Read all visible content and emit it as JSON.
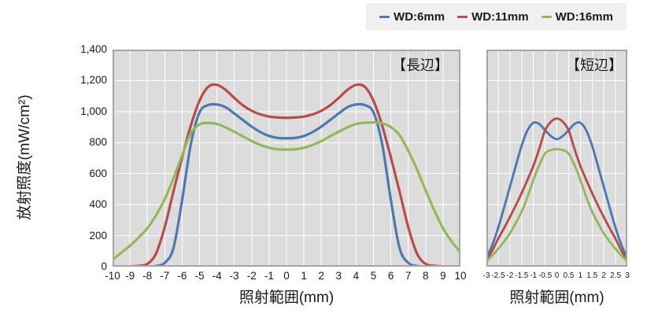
{
  "style": {
    "plot_bg": "#dcdcdc",
    "grid_color": "#ffffff",
    "plot_border": "#a6a6a6",
    "legend_bg": "#f0f0f0",
    "text_color": "#1a1a1a",
    "series_blue": "#4d79b3",
    "series_red": "#b94b4b",
    "series_green": "#93b857"
  },
  "chart_data": [
    {
      "type": "line",
      "title": "【長辺】",
      "xlabel": "照射範囲(mm)",
      "ylabel": "放射照度(mW/cm²)",
      "xlim": [
        -10,
        10
      ],
      "ylim": [
        0,
        1400
      ],
      "x_ticks": [
        -10,
        -9,
        -8,
        -7,
        -6,
        -5,
        -4,
        -3,
        -2,
        -1,
        0,
        1,
        2,
        3,
        4,
        5,
        6,
        7,
        8,
        9,
        10
      ],
      "y_ticks": [
        0,
        200,
        400,
        600,
        800,
        1000,
        1200,
        1400
      ],
      "grid": true,
      "legend_position": "top-right-outside",
      "series": [
        {
          "name": "WD:6mm",
          "color": "#4d79b3",
          "x": [
            -10,
            -9.5,
            -9,
            -8.5,
            -8,
            -7.5,
            -7,
            -6.5,
            -6,
            -5.5,
            -5,
            -4.5,
            -4,
            -3.5,
            -3,
            -2.5,
            -2,
            -1.5,
            -1,
            -0.5,
            0,
            0.5,
            1,
            1.5,
            2,
            2.5,
            3,
            3.5,
            4,
            4.5,
            5,
            5.5,
            6,
            6.5,
            7,
            7.5,
            8,
            8.5,
            9,
            9.5,
            10
          ],
          "y": [
            0,
            0,
            0,
            0,
            2,
            5,
            25,
            120,
            430,
            790,
            995,
            1042,
            1046,
            1028,
            988,
            945,
            903,
            868,
            843,
            830,
            828,
            830,
            843,
            868,
            903,
            945,
            988,
            1028,
            1046,
            1042,
            995,
            790,
            430,
            120,
            25,
            5,
            2,
            0,
            0,
            0,
            0
          ]
        },
        {
          "name": "WD:11mm",
          "color": "#b94b4b",
          "x": [
            -10,
            -9.5,
            -9,
            -8.5,
            -8,
            -7.5,
            -7,
            -6.5,
            -6,
            -5.5,
            -5,
            -4.5,
            -4,
            -3.5,
            -3,
            -2.5,
            -2,
            -1.5,
            -1,
            -0.5,
            0,
            0.5,
            1,
            1.5,
            2,
            2.5,
            3,
            3.5,
            4,
            4.5,
            5,
            5.5,
            6,
            6.5,
            7,
            7.5,
            8,
            8.5,
            9,
            9.5,
            10
          ],
          "y": [
            0,
            0,
            2,
            6,
            18,
            85,
            255,
            485,
            705,
            910,
            1070,
            1160,
            1172,
            1140,
            1088,
            1040,
            1005,
            982,
            968,
            962,
            960,
            962,
            968,
            982,
            1005,
            1040,
            1088,
            1140,
            1172,
            1160,
            1070,
            910,
            705,
            485,
            255,
            85,
            18,
            6,
            2,
            0,
            0
          ]
        },
        {
          "name": "WD:16mm",
          "color": "#93b857",
          "x": [
            -10,
            -9.5,
            -9,
            -8.5,
            -8,
            -7.5,
            -7,
            -6.5,
            -6,
            -5.5,
            -5,
            -4.5,
            -4,
            -3.5,
            -3,
            -2.5,
            -2,
            -1.5,
            -1,
            -0.5,
            0,
            0.5,
            1,
            1.5,
            2,
            2.5,
            3,
            3.5,
            4,
            4.5,
            5,
            5.5,
            6,
            6.5,
            7,
            7.5,
            8,
            8.5,
            9,
            9.5,
            10
          ],
          "y": [
            45,
            90,
            135,
            188,
            248,
            332,
            435,
            570,
            718,
            860,
            918,
            927,
            920,
            898,
            870,
            840,
            810,
            785,
            767,
            757,
            755,
            757,
            767,
            785,
            810,
            840,
            870,
            898,
            920,
            928,
            930,
            925,
            900,
            848,
            748,
            628,
            492,
            362,
            248,
            162,
            92
          ]
        }
      ]
    },
    {
      "type": "line",
      "title": "【短辺】",
      "xlabel": "照射範囲(mm)",
      "ylabel": "放射照度(mW/cm²)",
      "xlim": [
        -3,
        3
      ],
      "ylim": [
        0,
        1400
      ],
      "x_ticks": [
        -3,
        -2.5,
        -2,
        -1.5,
        -1,
        -0.5,
        0,
        0.5,
        1,
        1.5,
        2,
        2.5,
        3
      ],
      "y_ticks": [
        0,
        200,
        400,
        600,
        800,
        1000,
        1200,
        1400
      ],
      "show_y_tick_labels": false,
      "grid": true,
      "series": [
        {
          "name": "WD:6mm",
          "color": "#4d79b3",
          "x": [
            -3,
            -2.75,
            -2.5,
            -2.25,
            -2,
            -1.75,
            -1.5,
            -1.25,
            -1,
            -0.75,
            -0.5,
            -0.25,
            0,
            0.25,
            0.5,
            0.75,
            1,
            1.25,
            1.5,
            1.75,
            2,
            2.25,
            2.5,
            2.75,
            3
          ],
          "y": [
            60,
            140,
            250,
            380,
            515,
            650,
            780,
            880,
            928,
            920,
            880,
            842,
            822,
            842,
            880,
            920,
            928,
            880,
            780,
            650,
            515,
            380,
            250,
            140,
            60
          ]
        },
        {
          "name": "WD:11mm",
          "color": "#b94b4b",
          "x": [
            -3,
            -2.75,
            -2.5,
            -2.25,
            -2,
            -1.75,
            -1.5,
            -1.25,
            -1,
            -0.75,
            -0.5,
            -0.25,
            0,
            0.25,
            0.5,
            0.75,
            1,
            1.25,
            1.5,
            1.75,
            2,
            2.25,
            2.5,
            2.75,
            3
          ],
          "y": [
            40,
            105,
            180,
            248,
            320,
            395,
            475,
            560,
            650,
            760,
            880,
            935,
            955,
            935,
            880,
            760,
            650,
            560,
            475,
            395,
            320,
            248,
            180,
            105,
            40
          ]
        },
        {
          "name": "WD:16mm",
          "color": "#93b857",
          "x": [
            -3,
            -2.75,
            -2.5,
            -2.25,
            -2,
            -1.75,
            -1.5,
            -1.25,
            -1,
            -0.75,
            -0.5,
            -0.25,
            0,
            0.25,
            0.5,
            0.75,
            1,
            1.25,
            1.5,
            1.75,
            2,
            2.25,
            2.5,
            2.75,
            3
          ],
          "y": [
            35,
            72,
            115,
            162,
            215,
            282,
            355,
            450,
            560,
            655,
            730,
            752,
            758,
            752,
            730,
            655,
            560,
            450,
            355,
            282,
            215,
            162,
            115,
            72,
            35
          ]
        }
      ]
    }
  ]
}
